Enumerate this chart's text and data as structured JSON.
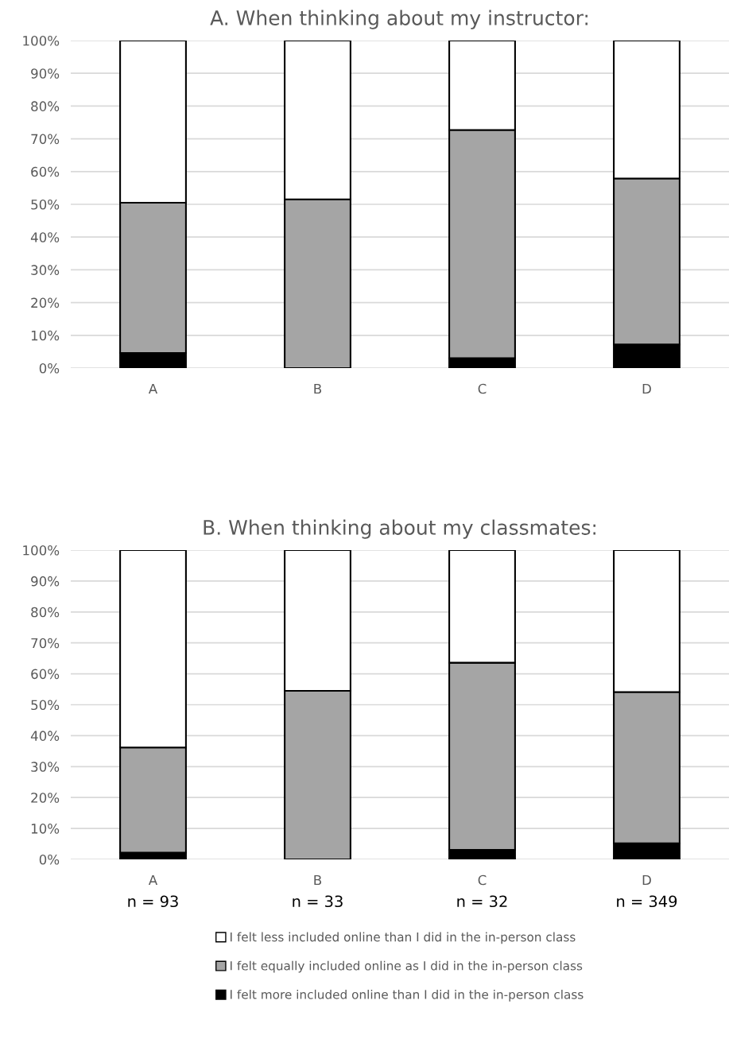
{
  "chart_data": [
    {
      "type": "bar",
      "title": "A. When thinking about my instructor:",
      "categories": [
        "A",
        "B",
        "C",
        "D"
      ],
      "stacked": true,
      "ylim": [
        0,
        100
      ],
      "yticks": [
        {
          "value": 0,
          "label": "0%"
        },
        {
          "value": 10,
          "label": "10%"
        },
        {
          "value": 20,
          "label": "20%"
        },
        {
          "value": 30,
          "label": "30%"
        },
        {
          "value": 40,
          "label": "40%"
        },
        {
          "value": 50,
          "label": "50%"
        },
        {
          "value": 60,
          "label": "60%"
        },
        {
          "value": 70,
          "label": "70%"
        },
        {
          "value": 80,
          "label": "80%"
        },
        {
          "value": 90,
          "label": "90%"
        },
        {
          "value": 100,
          "label": "100%"
        }
      ],
      "grid": "y",
      "legend": false,
      "series": [
        {
          "color": "#000000",
          "values": [
            4.6,
            0,
            3.0,
            7.2
          ]
        },
        {
          "color": "#a5a5a5",
          "values": [
            45.9,
            51.5,
            69.7,
            50.7
          ]
        },
        {
          "color": "#ffffff",
          "values": [
            49.5,
            48.5,
            27.3,
            42.1
          ]
        }
      ]
    },
    {
      "type": "bar",
      "title": "B. When thinking about my classmates:",
      "categories": [
        "A",
        "B",
        "C",
        "D"
      ],
      "stacked": true,
      "ylim": [
        0,
        100
      ],
      "yticks": [
        {
          "value": 0,
          "label": "0%"
        },
        {
          "value": 10,
          "label": "10%"
        },
        {
          "value": 20,
          "label": "20%"
        },
        {
          "value": 30,
          "label": "30%"
        },
        {
          "value": 40,
          "label": "40%"
        },
        {
          "value": 50,
          "label": "50%"
        },
        {
          "value": 60,
          "label": "60%"
        },
        {
          "value": 70,
          "label": "70%"
        },
        {
          "value": 80,
          "label": "80%"
        },
        {
          "value": 90,
          "label": "90%"
        },
        {
          "value": 100,
          "label": "100%"
        }
      ],
      "grid": "y",
      "legend": "bottom",
      "annotations": [
        "n = 93",
        "n = 33",
        "n = 32",
        "n = 349"
      ],
      "series": [
        {
          "name": "I felt more included online than I did in the in-person class",
          "color": "#000000",
          "values": [
            2.2,
            0,
            3.1,
            5.2
          ]
        },
        {
          "name": "I felt equally included online as I did in the in-person class",
          "color": "#a5a5a5",
          "values": [
            34.0,
            54.5,
            60.5,
            48.9
          ]
        },
        {
          "name": "I felt less included online than I did in the in-person class",
          "color": "#ffffff",
          "values": [
            63.8,
            45.5,
            36.4,
            45.9
          ]
        }
      ]
    }
  ]
}
